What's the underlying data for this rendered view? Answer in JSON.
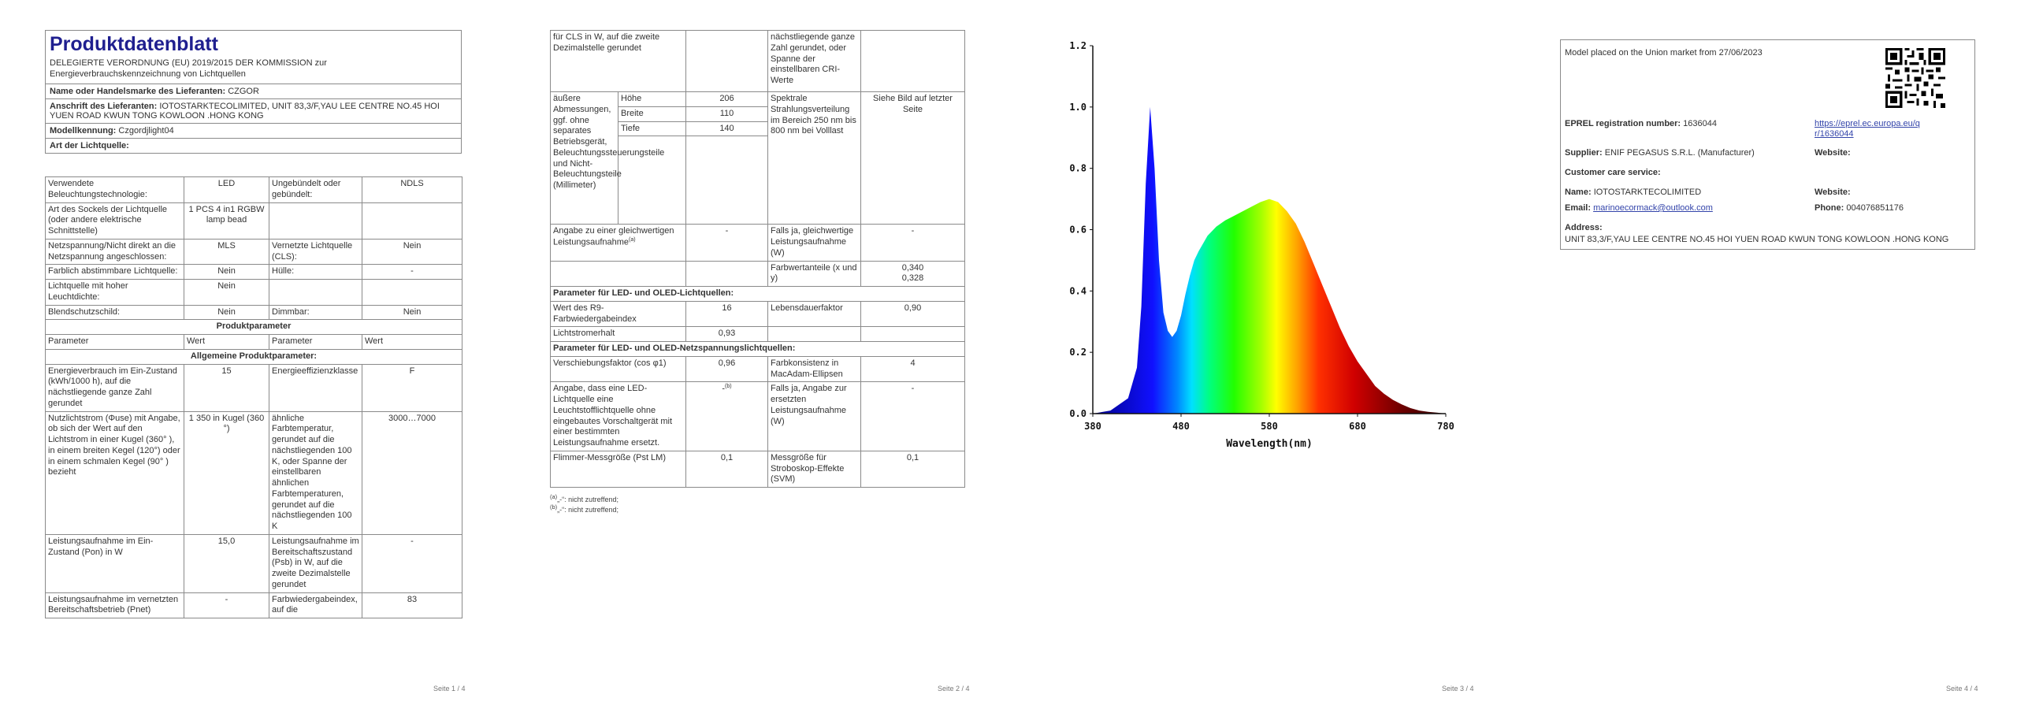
{
  "page1": {
    "title": "Produktdatenblatt",
    "subtitle": "DELEGIERTE VERORDNUNG (EU) 2019/2015 DER KOMMISSION zur Energieverbrauchskennzeichnung von Lichtquellen",
    "supplier_name_label": "Name oder Handelsmarke des Lieferanten:",
    "supplier_name": "CZGOR",
    "address_label": "Anschrift des Lieferanten:",
    "address": "IOTOSTARKTECOLIMITED, UNIT 83,3/F,YAU LEE CENTRE NO.45 HOI YUEN ROAD KWUN TONG KOWLOON .HONG KONG",
    "model_label": "Modellkennung:",
    "model": "Czgordjlight04",
    "type_label": "Art der Lichtquelle:",
    "rows": [
      {
        "a": "Verwendete Beleuchtungstechnologie:",
        "b": "LED",
        "c": "Ungebündelt oder gebündelt:",
        "d": "NDLS"
      },
      {
        "a": "Art des Sockels der Lichtquelle (oder andere elektrische Schnittstelle)",
        "b": "1 PCS 4 in1 RGBW lamp bead",
        "c": "",
        "d": ""
      },
      {
        "a": "Netzspannung/Nicht direkt an die Netzspannung angeschlossen:",
        "b": "MLS",
        "c": "Vernetzte Lichtquelle (CLS):",
        "d": "Nein"
      },
      {
        "a": "Farblich abstimmbare Lichtquelle:",
        "b": "Nein",
        "c": "Hülle:",
        "d": "-"
      },
      {
        "a": "Lichtquelle mit hoher Leuchtdichte:",
        "b": "Nein",
        "c": "",
        "d": ""
      },
      {
        "a": "Blendschutzschild:",
        "b": "Nein",
        "c": "Dimmbar:",
        "d": "Nein"
      }
    ],
    "params_title": "Produktparameter",
    "param_hdr": [
      "Parameter",
      "Wert",
      "Parameter",
      "Wert"
    ],
    "general_title": "Allgemeine Produktparameter:",
    "prows": [
      {
        "a": "Energieverbrauch im Ein-Zustand (kWh/1000 h), auf die nächstliegende ganze Zahl gerundet",
        "b": "15",
        "c": "Energieeffizienzklasse",
        "d": "F"
      },
      {
        "a": "Nutzlichtstrom (Φuse) mit Angabe, ob sich der Wert auf den Lichtstrom in einer Kugel (360° ), in einem breiten Kegel (120°) oder in einem schmalen Kegel (90° ) bezieht",
        "b": "1 350 in Kugel (360 °)",
        "c": "ähnliche Farbtemperatur, gerundet auf die nächstliegenden 100 K, oder Spanne der einstellbaren ähnlichen Farbtemperaturen, gerundet auf die nächstliegenden 100 K",
        "d": "3000…7000"
      },
      {
        "a": "Leistungsaufnahme im Ein-Zustand (Pon) in W",
        "b": "15,0",
        "c": "Leistungsaufnahme im Bereitschaftszustand (Psb) in W, auf die zweite Dezimalstelle gerundet",
        "d": "-"
      },
      {
        "a": "Leistungsaufnahme im vernetzten Bereitschaftsbetrieb (Pnet)",
        "b": "-",
        "c": "Farbwiedergabeindex, auf die",
        "d": "83"
      }
    ],
    "page_num": "Seite 1 / 4"
  },
  "page2": {
    "top": {
      "a": "für CLS in W, auf die zweite Dezimalstelle gerundet",
      "c": "nächstliegende ganze Zahl gerundet, oder Spanne der einstellbaren CRI-Werte"
    },
    "dims_label": "äußere Abmessungen, ggf. ohne separates Betriebsgerät, Beleuchtungssteuerungsteile und Nicht-Beleuchtungsteile (Millimeter)",
    "dims": [
      {
        "k": "Höhe",
        "v": "206"
      },
      {
        "k": "Breite",
        "v": "110"
      },
      {
        "k": "Tiefe",
        "v": "140"
      }
    ],
    "spectral_label": "Spektrale Strahlungsverteilung im Bereich 250 nm bis 800 nm bei Volllast",
    "spectral_value": "Siehe Bild auf letzter Seite",
    "equiv_label": "Angabe zu einer gleichwertigen Leistungsaufnahme",
    "equiv_sup": "(a)",
    "equiv_value": "-",
    "equiv_c": "Falls ja, gleichwertige Leistungsaufnahme (W)",
    "equiv_d": "-",
    "chroma_label": "Farbwertanteile (x und y)",
    "chroma_value": "0,340",
    "chroma_value2": "0,328",
    "led_title": "Parameter für LED- und OLED-Lichtquellen:",
    "r9_label": "Wert des R9-Farbwiedergabeindex",
    "r9_value": "16",
    "life_label": "Lebensdauerfaktor",
    "life_value": "0,90",
    "flux_label": "Lichtstromerhalt",
    "flux_value": "0,93",
    "mains_title": "Parameter für LED- und OLED-Netzspannungslichtquellen:",
    "shift_label": "Verschiebungsfaktor (cos φ1)",
    "shift_value": "0,96",
    "macadam_label": "Farbkonsistenz in MacAdam-Ellipsen",
    "macadam_value": "4",
    "fluor_label": "Angabe, dass eine LED-Lichtquelle eine Leuchtstofflichtquelle ohne eingebautes Vorschaltgerät mit einer bestimmten Leistungsaufnahme ersetzt.",
    "fluor_value": "-",
    "fluor_sup": "(b)",
    "fluor_c": "Falls ja, Angabe zur ersetzten Leistungsaufnahme (W)",
    "fluor_d": "-",
    "flicker_label": "Flimmer-Messgröße (Pst LM)",
    "flicker_value": "0,1",
    "strobo_label": "Messgröße für Stroboskop-Effekte (SVM)",
    "strobo_value": "0,1",
    "fn_a_mark": "(a)",
    "fn_a": "„-“: nicht zutreffend;",
    "fn_b_mark": "(b)",
    "fn_b": "„-“: nicht zutreffend;",
    "page_num": "Seite 2 / 4"
  },
  "chart_data": {
    "type": "area",
    "title": "",
    "xlabel": "Wavelength(nm)",
    "ylabel": "",
    "xlim": [
      380,
      780
    ],
    "ylim": [
      0,
      1.2
    ],
    "xticks": [
      "380",
      "480",
      "580",
      "680",
      "780"
    ],
    "yticks": [
      "0.0",
      "0.2",
      "0.4",
      "0.6",
      "0.8",
      "1.0",
      "1.2"
    ],
    "grid": false,
    "series": [
      {
        "x": [
          380,
          400,
          420,
          430,
          435,
          440,
          445,
          450,
          455,
          460,
          465,
          470,
          475,
          480,
          485,
          490,
          495,
          500,
          510,
          520,
          530,
          540,
          550,
          560,
          570,
          580,
          590,
          600,
          610,
          620,
          630,
          640,
          650,
          660,
          670,
          680,
          690,
          700,
          710,
          720,
          730,
          740,
          750,
          760,
          770,
          780
        ],
        "values": [
          0.0,
          0.01,
          0.05,
          0.15,
          0.35,
          0.75,
          1.0,
          0.8,
          0.5,
          0.33,
          0.27,
          0.25,
          0.27,
          0.32,
          0.39,
          0.45,
          0.5,
          0.53,
          0.58,
          0.61,
          0.63,
          0.645,
          0.66,
          0.675,
          0.69,
          0.7,
          0.69,
          0.66,
          0.62,
          0.56,
          0.49,
          0.42,
          0.35,
          0.28,
          0.22,
          0.17,
          0.13,
          0.09,
          0.065,
          0.045,
          0.03,
          0.018,
          0.01,
          0.006,
          0.003,
          0.0
        ]
      }
    ]
  },
  "page3": {
    "page_num": "Seite 3 / 4"
  },
  "page4": {
    "market": "Model placed on the Union market from 27/06/2023",
    "reg_label": "EPREL registration number:",
    "reg_value": "1636044",
    "reg_link": "https://eprel.ec.europa.eu/qr/1636044",
    "supplier_label": "Supplier:",
    "supplier_value": "ENIF PEGASUS S.R.L. (Manufacturer)",
    "website_label": "Website:",
    "care_label": "Customer care service:",
    "name_label": "Name:",
    "name_value": "IOTOSTARKTECOLIMITED",
    "website2_label": "Website:",
    "email_label": "Email:",
    "email_value": "marinoecormack@outlook.com",
    "phone_label": "Phone:",
    "phone_value": "004076851176",
    "address_label": "Address:",
    "address_value": "UNIT 83,3/F,YAU LEE CENTRE NO.45 HOI YUEN ROAD KWUN TONG KOWLOON .HONG KONG",
    "page_num": "Seite 4 / 4"
  }
}
